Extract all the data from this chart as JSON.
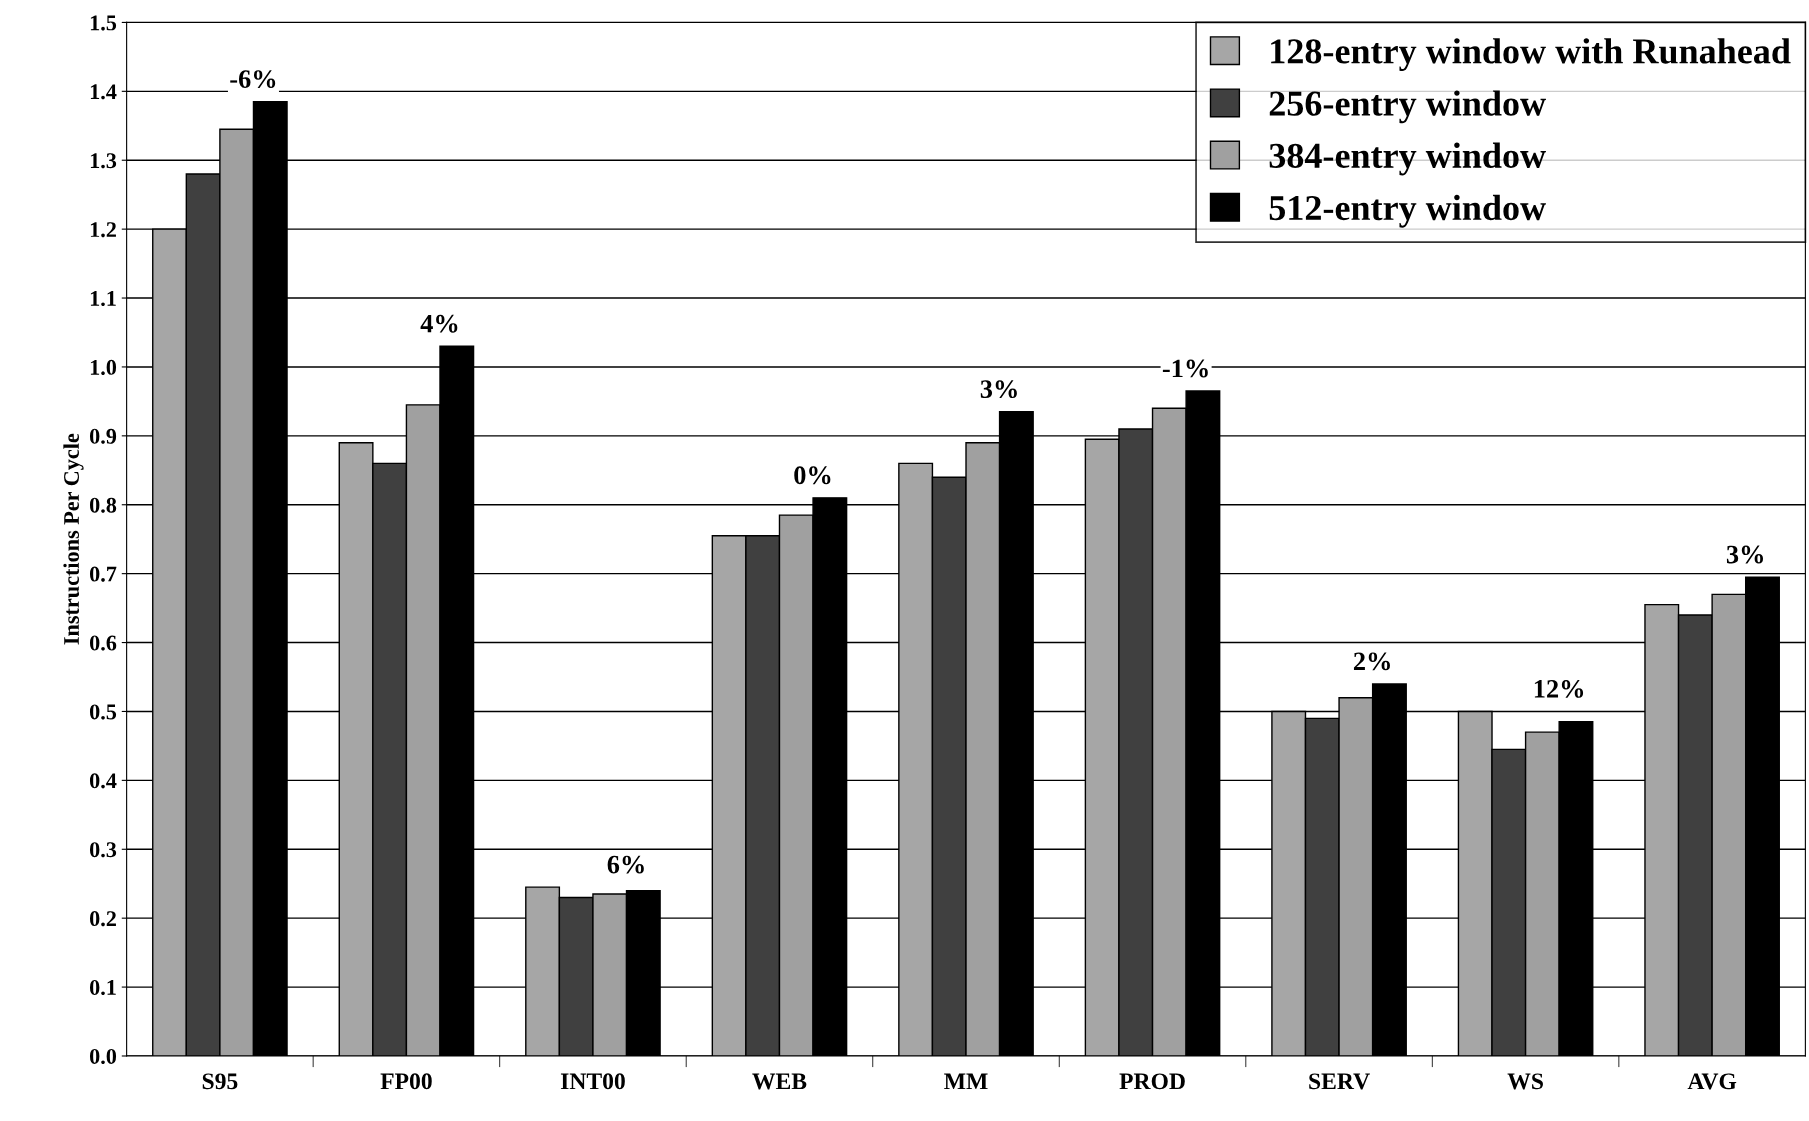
{
  "chart_data": {
    "type": "bar",
    "ylabel": "Instructions Per Cycle",
    "categories": [
      "S95",
      "FP00",
      "INT00",
      "WEB",
      "MM",
      "PROD",
      "SERV",
      "WS",
      "AVG"
    ],
    "series": [
      {
        "name": "128-entry window with Runahead",
        "color": "#a6a6a6",
        "values": [
          1.2,
          0.89,
          0.245,
          0.755,
          0.86,
          0.895,
          0.5,
          0.5,
          0.655
        ]
      },
      {
        "name": "256-entry window",
        "color": "#404040",
        "values": [
          1.28,
          0.86,
          0.23,
          0.755,
          0.84,
          0.91,
          0.49,
          0.445,
          0.64
        ]
      },
      {
        "name": "384-entry window",
        "color": "#a0a0a0",
        "values": [
          1.345,
          0.945,
          0.235,
          0.785,
          0.89,
          0.94,
          0.52,
          0.47,
          0.67
        ]
      },
      {
        "name": "512-entry window",
        "color": "#000000",
        "values": [
          1.385,
          1.03,
          0.24,
          0.81,
          0.935,
          0.965,
          0.54,
          0.485,
          0.695
        ]
      }
    ],
    "annotations": [
      "-6%",
      "4%",
      "6%",
      "0%",
      "3%",
      "-1%",
      "2%",
      "12%",
      "3%"
    ],
    "ylim": [
      0,
      1.5
    ],
    "yticks": [
      {
        "value": 0,
        "label": "0.0"
      },
      {
        "value": 0.1,
        "label": "0.1"
      },
      {
        "value": 0.2,
        "label": "0.2"
      },
      {
        "value": 0.3,
        "label": "0.3"
      },
      {
        "value": 0.4,
        "label": "0.4"
      },
      {
        "value": 0.5,
        "label": "0.5"
      },
      {
        "value": 0.6,
        "label": "0.6"
      },
      {
        "value": 0.7,
        "label": "0.7"
      },
      {
        "value": 0.8,
        "label": "0.8"
      },
      {
        "value": 0.9,
        "label": "0.9"
      },
      {
        "value": 1.0,
        "label": "1.0"
      },
      {
        "value": 1.1,
        "label": "1.1"
      },
      {
        "value": 1.2,
        "label": "1.2"
      },
      {
        "value": 1.3,
        "label": "1.3"
      },
      {
        "value": 1.4,
        "label": "1.4"
      },
      {
        "value": 1.5,
        "label": "1.5"
      }
    ],
    "grid": "y",
    "legend": "top right"
  }
}
